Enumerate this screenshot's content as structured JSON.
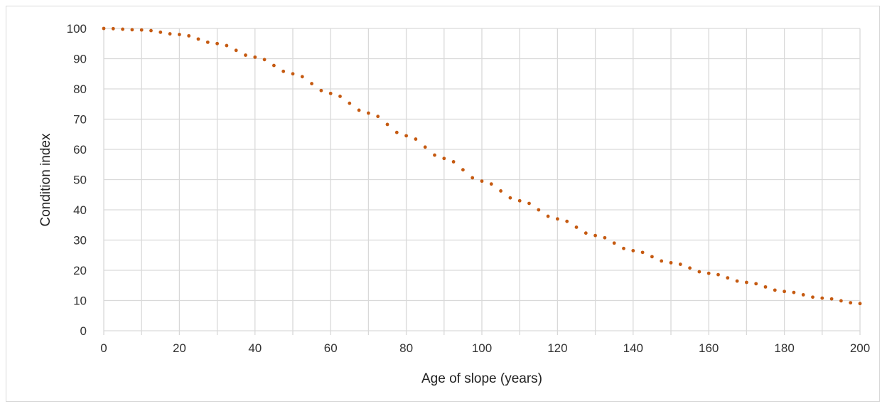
{
  "chart_data": {
    "type": "line",
    "title": "",
    "xlabel": "Age of slope (years)",
    "ylabel": "Condition index",
    "xlim": [
      0,
      200
    ],
    "ylim": [
      0,
      100
    ],
    "x_ticks": [
      "0",
      "20",
      "40",
      "60",
      "80",
      "100",
      "120",
      "140",
      "160",
      "180",
      "200"
    ],
    "y_ticks": [
      "0",
      "10",
      "20",
      "30",
      "40",
      "50",
      "60",
      "70",
      "80",
      "90",
      "100"
    ],
    "grid": true,
    "legend": "none",
    "line_style": "dotted",
    "colors": {
      "series": "#c55a11",
      "grid": "#d9d9d9"
    },
    "series": [
      {
        "x": [
          0,
          10,
          20,
          30,
          40,
          50,
          60,
          70,
          80,
          90,
          100,
          110,
          120,
          130,
          140,
          150,
          160,
          170,
          180,
          190,
          200
        ],
        "y": [
          100,
          99.5,
          98,
          95,
          90.5,
          85,
          78.5,
          72,
          64.5,
          57,
          49.5,
          43,
          37,
          31.5,
          26.5,
          22.5,
          19,
          16,
          13,
          10.8,
          9
        ]
      }
    ]
  }
}
